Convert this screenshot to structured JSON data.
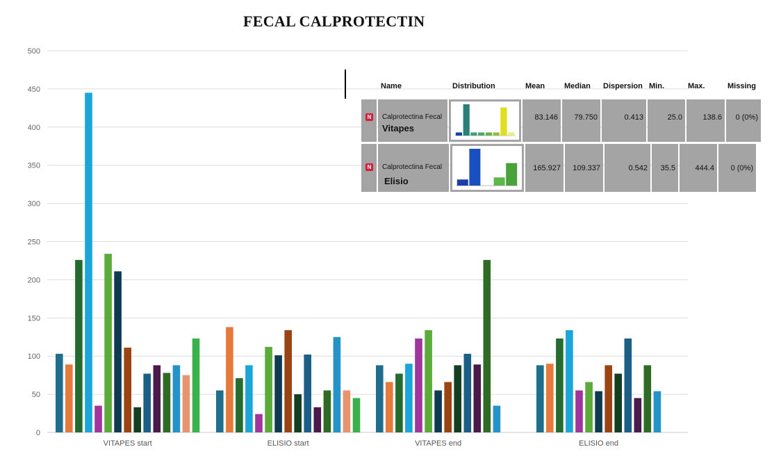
{
  "chart_data": {
    "type": "bar",
    "title": "FECAL CALPROTECTIN",
    "xlabel": "",
    "ylabel": "",
    "ylim": [
      0,
      500
    ],
    "yticks": [
      0,
      50,
      100,
      150,
      200,
      250,
      300,
      350,
      400,
      450,
      500
    ],
    "grid": true,
    "categories": [
      "VITAPES start",
      "ELISIO start",
      "VITAPES end",
      "ELISIO end"
    ],
    "series_values": [
      [
        103,
        89,
        226,
        445,
        35,
        234,
        211,
        111,
        33,
        77,
        88,
        78,
        88,
        75,
        123
      ],
      [
        55,
        138,
        71,
        88,
        24,
        112,
        101,
        134,
        50,
        102,
        33,
        55,
        125,
        55,
        45
      ],
      [
        88,
        66,
        77,
        90,
        123,
        134,
        55,
        66,
        88,
        103,
        89,
        226,
        35
      ],
      [
        88,
        90,
        123,
        134,
        55,
        66,
        54,
        88,
        77,
        123,
        45,
        88,
        54
      ]
    ],
    "palette": [
      "#1f6e8c",
      "#e57a3c",
      "#236b2e",
      "#1aa6d8",
      "#a0359e",
      "#5aab3a",
      "#0f3b52",
      "#9a4414",
      "#133f20",
      "#1b5f86",
      "#4a1a4a",
      "#2f6b25",
      "#2593c7",
      "#e99470",
      "#3bb14c"
    ]
  },
  "stats_table": {
    "headers": [
      "Name",
      "Distribution",
      "Mean",
      "Median",
      "Dispersion",
      "Min.",
      "Max.",
      "Missing"
    ],
    "rows": [
      {
        "badge": "N",
        "name": "Calprotectina Fecal",
        "group": "Vitapes",
        "mean": "83.146",
        "median": "79.750",
        "dispersion": "0.413",
        "min": "25.0",
        "max": "138.6",
        "missing": "0 (0%)",
        "distribution": [
          {
            "value": 1,
            "color": "#1746a2"
          },
          {
            "value": 10,
            "color": "#2a7f78"
          },
          {
            "value": 1,
            "color": "#3e9e7b"
          },
          {
            "value": 1,
            "color": "#4aa86a"
          },
          {
            "value": 1,
            "color": "#6ab04a"
          },
          {
            "value": 1,
            "color": "#8fbe3a"
          },
          {
            "value": 9,
            "color": "#dfdf20"
          },
          {
            "value": 1,
            "color": "#eded80"
          }
        ]
      },
      {
        "badge": "N",
        "name": "Calprotectina Fecal",
        "group": "Elisio",
        "mean": "165.927",
        "median": "109.337",
        "dispersion": "0.542",
        "min": "35.5",
        "max": "444.4",
        "missing": "0 (0%)",
        "distribution": [
          {
            "value": 1.5,
            "color": "#1b3fa8"
          },
          {
            "value": 9,
            "color": "#1a4fc0"
          },
          {
            "value": 0,
            "color": "#ffffff"
          },
          {
            "value": 2,
            "color": "#5db84b"
          },
          {
            "value": 5.5,
            "color": "#4aa33a"
          }
        ]
      }
    ]
  }
}
